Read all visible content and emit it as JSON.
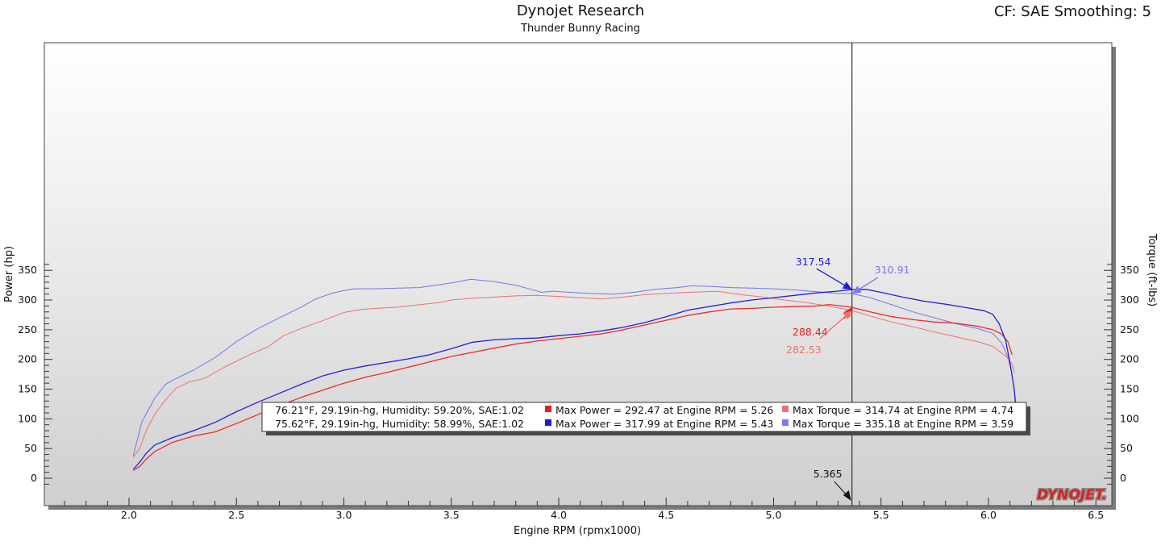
{
  "header": {
    "title": "Dynojet Research",
    "subtitle": "Thunder Bunny Racing",
    "correction": "CF: SAE Smoothing: 5"
  },
  "logo_text": "DYNOJET.",
  "chart_data": {
    "type": "line",
    "xlabel": "Engine RPM (rpmx1000)",
    "ylabel_left": "Power (hp)",
    "ylabel_right": "Torque (ft-lbs)",
    "xlim": [
      1.6,
      6.5
    ],
    "ylim": [
      -20,
      370
    ],
    "x_ticks": [
      "2.0",
      "2.5",
      "3.0",
      "3.5",
      "4.0",
      "4.5",
      "5.0",
      "5.5",
      "6.0",
      "6.5"
    ],
    "y_ticks": [
      "0",
      "50",
      "100",
      "150",
      "200",
      "250",
      "300",
      "350"
    ],
    "colors": {
      "run1_power": "#ee2a2a",
      "run2_power": "#2222dd",
      "run1_torque": "#f07070",
      "run2_torque": "#7474ee"
    },
    "cursor": {
      "x": 5.365,
      "label": "5.365"
    },
    "cursor_markers": [
      {
        "label": "317.54",
        "series": "run2_power",
        "color": "#1a1ae0"
      },
      {
        "label": "310.91",
        "series": "run2_torque",
        "color": "#7a7af0"
      },
      {
        "label": "288.44",
        "series": "run1_power",
        "color": "#e81c1c"
      },
      {
        "label": "282.53",
        "series": "run1_torque",
        "color": "#f07070"
      }
    ],
    "series": [
      {
        "key": "run2_torque",
        "color": "#7474ee",
        "width": 1,
        "points": [
          [
            2.02,
            38
          ],
          [
            2.06,
            95
          ],
          [
            2.12,
            135
          ],
          [
            2.17,
            158
          ],
          [
            2.22,
            168
          ],
          [
            2.3,
            182
          ],
          [
            2.4,
            203
          ],
          [
            2.5,
            230
          ],
          [
            2.6,
            252
          ],
          [
            2.7,
            270
          ],
          [
            2.8,
            288
          ],
          [
            2.87,
            302
          ],
          [
            2.95,
            312
          ],
          [
            3.0,
            316
          ],
          [
            3.05,
            319
          ],
          [
            3.15,
            319
          ],
          [
            3.25,
            320
          ],
          [
            3.35,
            321
          ],
          [
            3.45,
            326
          ],
          [
            3.52,
            330
          ],
          [
            3.59,
            335
          ],
          [
            3.7,
            331
          ],
          [
            3.8,
            325
          ],
          [
            3.87,
            318
          ],
          [
            3.92,
            313
          ],
          [
            3.97,
            315
          ],
          [
            4.05,
            313
          ],
          [
            4.15,
            311
          ],
          [
            4.25,
            310
          ],
          [
            4.35,
            313
          ],
          [
            4.45,
            318
          ],
          [
            4.55,
            321
          ],
          [
            4.62,
            324
          ],
          [
            4.7,
            323
          ],
          [
            4.8,
            321
          ],
          [
            4.9,
            320
          ],
          [
            5.0,
            319
          ],
          [
            5.1,
            317
          ],
          [
            5.2,
            314
          ],
          [
            5.3,
            311
          ],
          [
            5.36,
            311
          ],
          [
            5.45,
            304
          ],
          [
            5.55,
            292
          ],
          [
            5.65,
            280
          ],
          [
            5.75,
            270
          ],
          [
            5.85,
            260
          ],
          [
            5.95,
            252
          ],
          [
            6.02,
            244
          ],
          [
            6.06,
            228
          ],
          [
            6.09,
            205
          ],
          [
            6.11,
            175
          ],
          [
            6.13,
            120
          ],
          [
            6.14,
            75
          ]
        ]
      },
      {
        "key": "run1_torque",
        "color": "#f07070",
        "width": 1,
        "points": [
          [
            2.02,
            35
          ],
          [
            2.05,
            50
          ],
          [
            2.08,
            80
          ],
          [
            2.12,
            108
          ],
          [
            2.17,
            132
          ],
          [
            2.22,
            152
          ],
          [
            2.28,
            162
          ],
          [
            2.35,
            168
          ],
          [
            2.45,
            188
          ],
          [
            2.55,
            206
          ],
          [
            2.65,
            222
          ],
          [
            2.72,
            240
          ],
          [
            2.8,
            252
          ],
          [
            2.9,
            265
          ],
          [
            3.0,
            279
          ],
          [
            3.08,
            284
          ],
          [
            3.15,
            286
          ],
          [
            3.25,
            288
          ],
          [
            3.35,
            292
          ],
          [
            3.45,
            296
          ],
          [
            3.5,
            300
          ],
          [
            3.6,
            303
          ],
          [
            3.7,
            305
          ],
          [
            3.8,
            307
          ],
          [
            3.9,
            308
          ],
          [
            4.0,
            306
          ],
          [
            4.1,
            304
          ],
          [
            4.2,
            302
          ],
          [
            4.3,
            305
          ],
          [
            4.4,
            309
          ],
          [
            4.5,
            311
          ],
          [
            4.6,
            313
          ],
          [
            4.74,
            314.7
          ],
          [
            4.85,
            309
          ],
          [
            4.95,
            305
          ],
          [
            5.05,
            300
          ],
          [
            5.15,
            296
          ],
          [
            5.25,
            290
          ],
          [
            5.36,
            283
          ],
          [
            5.45,
            273
          ],
          [
            5.55,
            263
          ],
          [
            5.65,
            255
          ],
          [
            5.75,
            246
          ],
          [
            5.85,
            238
          ],
          [
            5.95,
            230
          ],
          [
            6.02,
            222
          ],
          [
            6.08,
            206
          ],
          [
            6.11,
            192
          ],
          [
            6.12,
            178
          ]
        ]
      },
      {
        "key": "run1_power",
        "color": "#ee2a2a",
        "width": 1.3,
        "points": [
          [
            2.02,
            13
          ],
          [
            2.05,
            20
          ],
          [
            2.08,
            32
          ],
          [
            2.12,
            45
          ],
          [
            2.2,
            60
          ],
          [
            2.3,
            71
          ],
          [
            2.4,
            78
          ],
          [
            2.5,
            92
          ],
          [
            2.6,
            107
          ],
          [
            2.7,
            122
          ],
          [
            2.8,
            136
          ],
          [
            2.9,
            148
          ],
          [
            3.0,
            160
          ],
          [
            3.1,
            170
          ],
          [
            3.2,
            178
          ],
          [
            3.3,
            187
          ],
          [
            3.4,
            196
          ],
          [
            3.5,
            205
          ],
          [
            3.6,
            212
          ],
          [
            3.7,
            219
          ],
          [
            3.8,
            226
          ],
          [
            3.9,
            231
          ],
          [
            4.0,
            235
          ],
          [
            4.1,
            239
          ],
          [
            4.2,
            243
          ],
          [
            4.3,
            250
          ],
          [
            4.4,
            258
          ],
          [
            4.5,
            266
          ],
          [
            4.6,
            274
          ],
          [
            4.7,
            280
          ],
          [
            4.8,
            285
          ],
          [
            4.9,
            286
          ],
          [
            5.0,
            288
          ],
          [
            5.1,
            289
          ],
          [
            5.2,
            290
          ],
          [
            5.26,
            292.5
          ],
          [
            5.36,
            288
          ],
          [
            5.45,
            280
          ],
          [
            5.55,
            272
          ],
          [
            5.65,
            267
          ],
          [
            5.75,
            263
          ],
          [
            5.85,
            261
          ],
          [
            5.95,
            256
          ],
          [
            6.02,
            250
          ],
          [
            6.06,
            243
          ],
          [
            6.09,
            230
          ],
          [
            6.11,
            208
          ]
        ]
      },
      {
        "key": "run2_power",
        "color": "#2222dd",
        "width": 1.3,
        "points": [
          [
            2.02,
            15
          ],
          [
            2.05,
            27
          ],
          [
            2.08,
            42
          ],
          [
            2.12,
            56
          ],
          [
            2.2,
            68
          ],
          [
            2.3,
            80
          ],
          [
            2.4,
            94
          ],
          [
            2.5,
            112
          ],
          [
            2.6,
            128
          ],
          [
            2.7,
            143
          ],
          [
            2.8,
            158
          ],
          [
            2.9,
            172
          ],
          [
            3.0,
            182
          ],
          [
            3.1,
            189
          ],
          [
            3.2,
            195
          ],
          [
            3.3,
            201
          ],
          [
            3.4,
            208
          ],
          [
            3.5,
            218
          ],
          [
            3.6,
            229
          ],
          [
            3.7,
            233
          ],
          [
            3.8,
            235
          ],
          [
            3.9,
            236
          ],
          [
            4.0,
            240
          ],
          [
            4.1,
            243
          ],
          [
            4.2,
            248
          ],
          [
            4.3,
            254
          ],
          [
            4.4,
            262
          ],
          [
            4.5,
            272
          ],
          [
            4.6,
            283
          ],
          [
            4.7,
            289
          ],
          [
            4.8,
            295
          ],
          [
            4.9,
            300
          ],
          [
            5.0,
            304
          ],
          [
            5.1,
            308
          ],
          [
            5.2,
            312
          ],
          [
            5.3,
            315
          ],
          [
            5.36,
            317.5
          ],
          [
            5.43,
            318
          ],
          [
            5.5,
            313
          ],
          [
            5.6,
            305
          ],
          [
            5.7,
            298
          ],
          [
            5.8,
            293
          ],
          [
            5.9,
            287
          ],
          [
            5.98,
            282
          ],
          [
            6.02,
            276
          ],
          [
            6.05,
            260
          ],
          [
            6.08,
            232
          ],
          [
            6.1,
            195
          ],
          [
            6.12,
            150
          ],
          [
            6.13,
            105
          ],
          [
            6.14,
            85
          ]
        ]
      }
    ],
    "legend": {
      "rows": [
        {
          "conditions": "76.21°F, 29.19in-hg, Humidity: 59.20%, SAE:1.02",
          "power_text": "Max Power = 292.47 at Engine RPM = 5.26",
          "power_color": "#e81c1c",
          "torque_text": "Max Torque = 314.74 at Engine RPM = 4.74",
          "torque_color": "#f07070"
        },
        {
          "conditions": "75.62°F, 29.19in-hg, Humidity: 58.99%, SAE:1.02",
          "power_text": "Max Power = 317.99 at Engine RPM = 5.43",
          "power_color": "#1a1ae0",
          "torque_text": "Max Torque = 335.18 at Engine RPM = 3.59",
          "torque_color": "#7a7af0"
        }
      ]
    }
  }
}
